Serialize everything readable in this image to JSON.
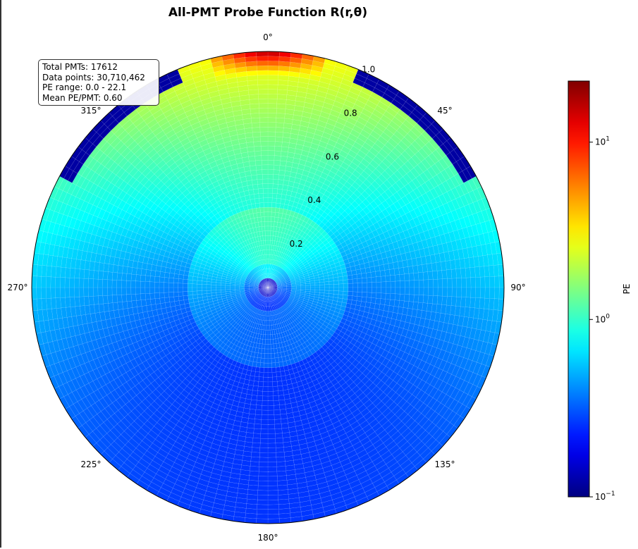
{
  "chart_data": {
    "type": "heatmap",
    "projection": "polar",
    "title": "All-PMT Probe Function R(r,θ)",
    "theta_zero": "top",
    "theta_direction": "clockwise",
    "theta_ticks_deg": [
      0,
      45,
      90,
      135,
      180,
      225,
      270,
      315
    ],
    "theta_tick_labels": [
      "0°",
      "45°",
      "90°",
      "135°",
      "180°",
      "225°",
      "270°",
      "315°"
    ],
    "r_ticks": [
      0.2,
      0.4,
      0.6,
      0.8,
      1.0
    ],
    "r_tick_labels": [
      "0.2",
      "0.4",
      "0.6",
      "0.8",
      "1.0"
    ],
    "rlim": [
      0,
      1.0
    ],
    "colormap": "jet",
    "color_scale": "log",
    "clim": [
      0.1,
      22.1
    ],
    "colorbar_label": "PE",
    "colorbar_ticks": [
      0.1,
      1,
      10
    ],
    "colorbar_tick_labels": [
      {
        "base": "10",
        "exp": "−1"
      },
      {
        "base": "10",
        "exp": "0"
      },
      {
        "base": "10",
        "exp": "1"
      }
    ],
    "approx_values": {
      "top_edge_max_pe": 22.1,
      "upper_region_pe": 1.0,
      "bulk_lower_region_pe": 0.25,
      "outer_rim_upper_sides_pe": 0.12,
      "center_pe": 0.5
    }
  },
  "stats": {
    "lines": [
      "Total PMTs: 17612",
      "Data points: 30,710,462",
      "PE range: 0.0 - 22.1",
      "Mean PE/PMT: 0.60"
    ]
  }
}
